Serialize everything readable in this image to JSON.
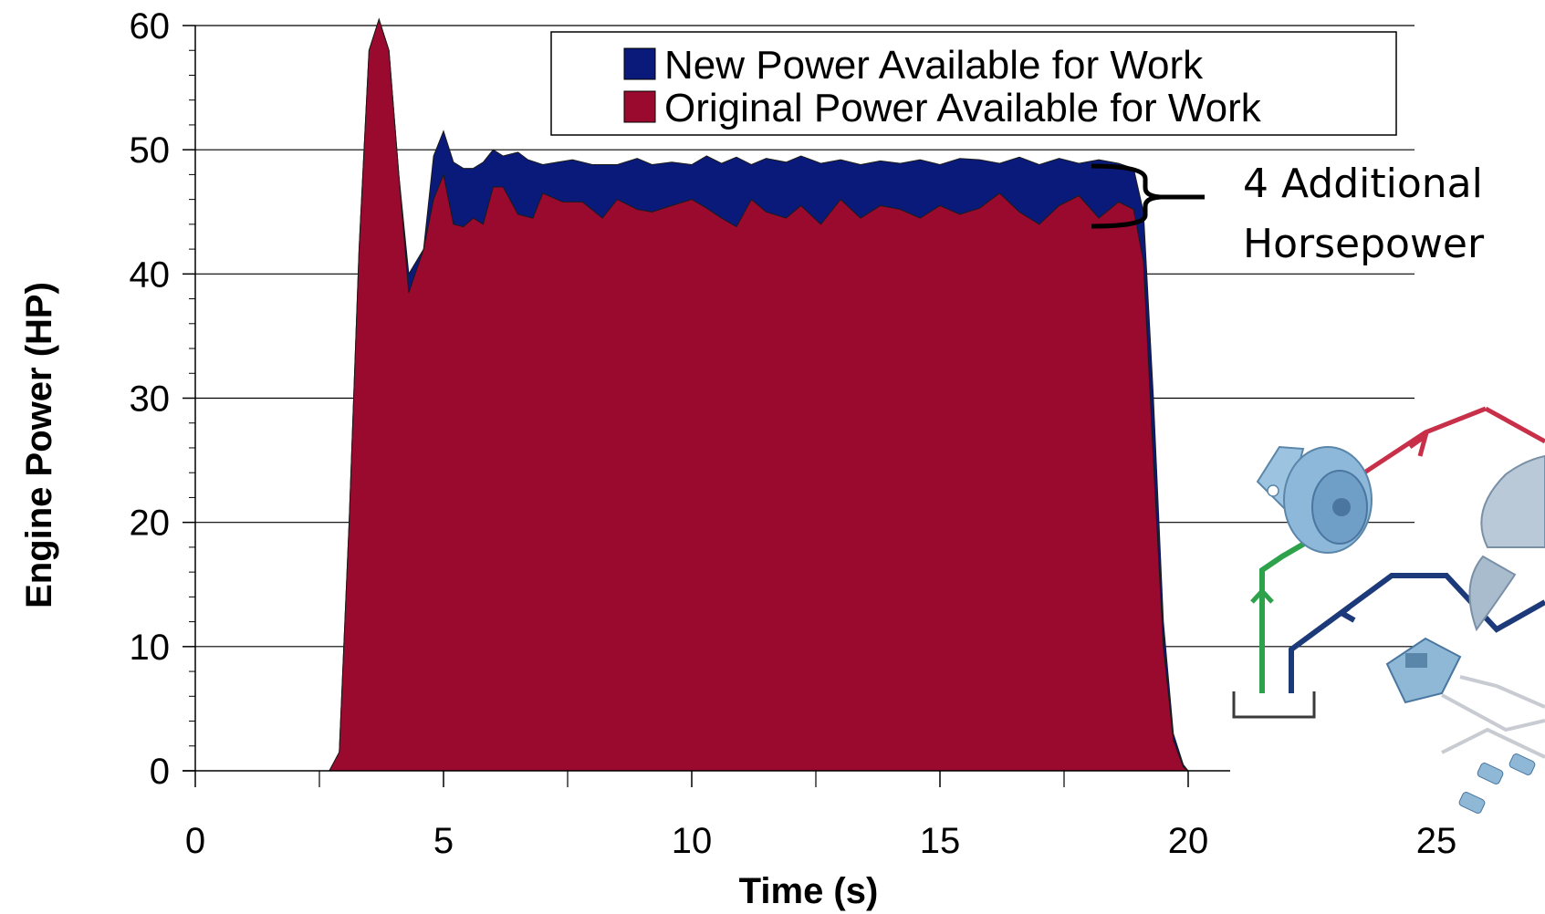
{
  "chart_data": {
    "type": "area",
    "xlabel": "Time (s)",
    "ylabel": "Engine Power (HP)",
    "xlim": [
      0,
      25
    ],
    "ylim": [
      0,
      60
    ],
    "x_ticks": [
      "0",
      "5",
      "10",
      "15",
      "20",
      "25"
    ],
    "y_ticks": [
      "0",
      "10",
      "20",
      "30",
      "40",
      "50",
      "60"
    ],
    "grid": "horizontal",
    "legend_position": "top-right",
    "series": [
      {
        "name": "New Power Available for Work",
        "color": "#0a1a7a",
        "points": [
          [
            2.7,
            0
          ],
          [
            2.9,
            1.5
          ],
          [
            3.1,
            20
          ],
          [
            3.3,
            42
          ],
          [
            3.5,
            58
          ],
          [
            3.7,
            60.5
          ],
          [
            3.9,
            58
          ],
          [
            4.1,
            48
          ],
          [
            4.3,
            40
          ],
          [
            4.6,
            42
          ],
          [
            4.8,
            49.5
          ],
          [
            5.0,
            51.5
          ],
          [
            5.2,
            49
          ],
          [
            5.4,
            48.5
          ],
          [
            5.6,
            48.5
          ],
          [
            5.8,
            49
          ],
          [
            6.0,
            50
          ],
          [
            6.2,
            49.5
          ],
          [
            6.5,
            49.8
          ],
          [
            6.7,
            49.2
          ],
          [
            7.0,
            48.8
          ],
          [
            7.3,
            49
          ],
          [
            7.6,
            49.2
          ],
          [
            8.0,
            48.8
          ],
          [
            8.5,
            48.8
          ],
          [
            8.9,
            49.3
          ],
          [
            9.2,
            48.8
          ],
          [
            9.6,
            49
          ],
          [
            10.0,
            48.8
          ],
          [
            10.3,
            49.5
          ],
          [
            10.6,
            48.9
          ],
          [
            10.9,
            49.4
          ],
          [
            11.2,
            48.8
          ],
          [
            11.5,
            49.3
          ],
          [
            11.9,
            49
          ],
          [
            12.2,
            49.5
          ],
          [
            12.6,
            48.9
          ],
          [
            13.0,
            49.2
          ],
          [
            13.4,
            48.8
          ],
          [
            13.8,
            49.1
          ],
          [
            14.2,
            48.9
          ],
          [
            14.6,
            49.2
          ],
          [
            15.0,
            48.8
          ],
          [
            15.4,
            49.3
          ],
          [
            15.8,
            49.2
          ],
          [
            16.2,
            48.9
          ],
          [
            16.6,
            49.4
          ],
          [
            17.0,
            48.8
          ],
          [
            17.4,
            49.3
          ],
          [
            17.8,
            48.9
          ],
          [
            18.2,
            49.2
          ],
          [
            18.6,
            48.9
          ],
          [
            18.9,
            48.5
          ],
          [
            19.1,
            45
          ],
          [
            19.3,
            30
          ],
          [
            19.5,
            12
          ],
          [
            19.7,
            3
          ],
          [
            19.9,
            0.5
          ],
          [
            20.0,
            0
          ]
        ]
      },
      {
        "name": "Original Power Available for Work",
        "color": "#990a2e",
        "points": [
          [
            2.7,
            0
          ],
          [
            2.9,
            1.5
          ],
          [
            3.1,
            20
          ],
          [
            3.3,
            42
          ],
          [
            3.5,
            58
          ],
          [
            3.7,
            60.5
          ],
          [
            3.9,
            58
          ],
          [
            4.1,
            48
          ],
          [
            4.3,
            38.5
          ],
          [
            4.6,
            42
          ],
          [
            4.8,
            46
          ],
          [
            5.0,
            48
          ],
          [
            5.2,
            44
          ],
          [
            5.4,
            43.8
          ],
          [
            5.6,
            44.5
          ],
          [
            5.8,
            44
          ],
          [
            6.0,
            47
          ],
          [
            6.2,
            47
          ],
          [
            6.5,
            44.8
          ],
          [
            6.8,
            44.5
          ],
          [
            7.0,
            46.5
          ],
          [
            7.4,
            45.8
          ],
          [
            7.8,
            45.8
          ],
          [
            8.2,
            44.5
          ],
          [
            8.5,
            46
          ],
          [
            8.9,
            45.2
          ],
          [
            9.2,
            45
          ],
          [
            9.6,
            45.5
          ],
          [
            10.0,
            46
          ],
          [
            10.3,
            45.3
          ],
          [
            10.6,
            44.5
          ],
          [
            10.9,
            43.8
          ],
          [
            11.2,
            46
          ],
          [
            11.5,
            45
          ],
          [
            11.9,
            44.5
          ],
          [
            12.2,
            45.5
          ],
          [
            12.6,
            44
          ],
          [
            13.0,
            46
          ],
          [
            13.4,
            44.5
          ],
          [
            13.8,
            45.5
          ],
          [
            14.2,
            45.2
          ],
          [
            14.6,
            44.5
          ],
          [
            15.0,
            45.5
          ],
          [
            15.4,
            44.8
          ],
          [
            15.8,
            45.3
          ],
          [
            16.2,
            46.5
          ],
          [
            16.6,
            45
          ],
          [
            17.0,
            44
          ],
          [
            17.4,
            45.5
          ],
          [
            17.8,
            46.3
          ],
          [
            18.2,
            44.5
          ],
          [
            18.6,
            45.8
          ],
          [
            18.9,
            45.2
          ],
          [
            19.1,
            41
          ],
          [
            19.3,
            25
          ],
          [
            19.5,
            10
          ],
          [
            19.7,
            2.5
          ],
          [
            19.9,
            0.3
          ],
          [
            20.0,
            0
          ]
        ]
      }
    ],
    "annotation": {
      "line1": "4 Additional",
      "line2": "Horsepower"
    }
  },
  "diagram": {
    "fan_motor_icon": "hydraulic-motor-icon",
    "fan_icon": "fan-blade-icon",
    "valve_icon": "control-valve-icon",
    "tank_icon": "reservoir-icon",
    "pipe_colors": {
      "pressure": "#c8304a",
      "supply": "#2ea24a",
      "return": "#1c3a7a",
      "pilot": "#c8ccd2"
    }
  }
}
